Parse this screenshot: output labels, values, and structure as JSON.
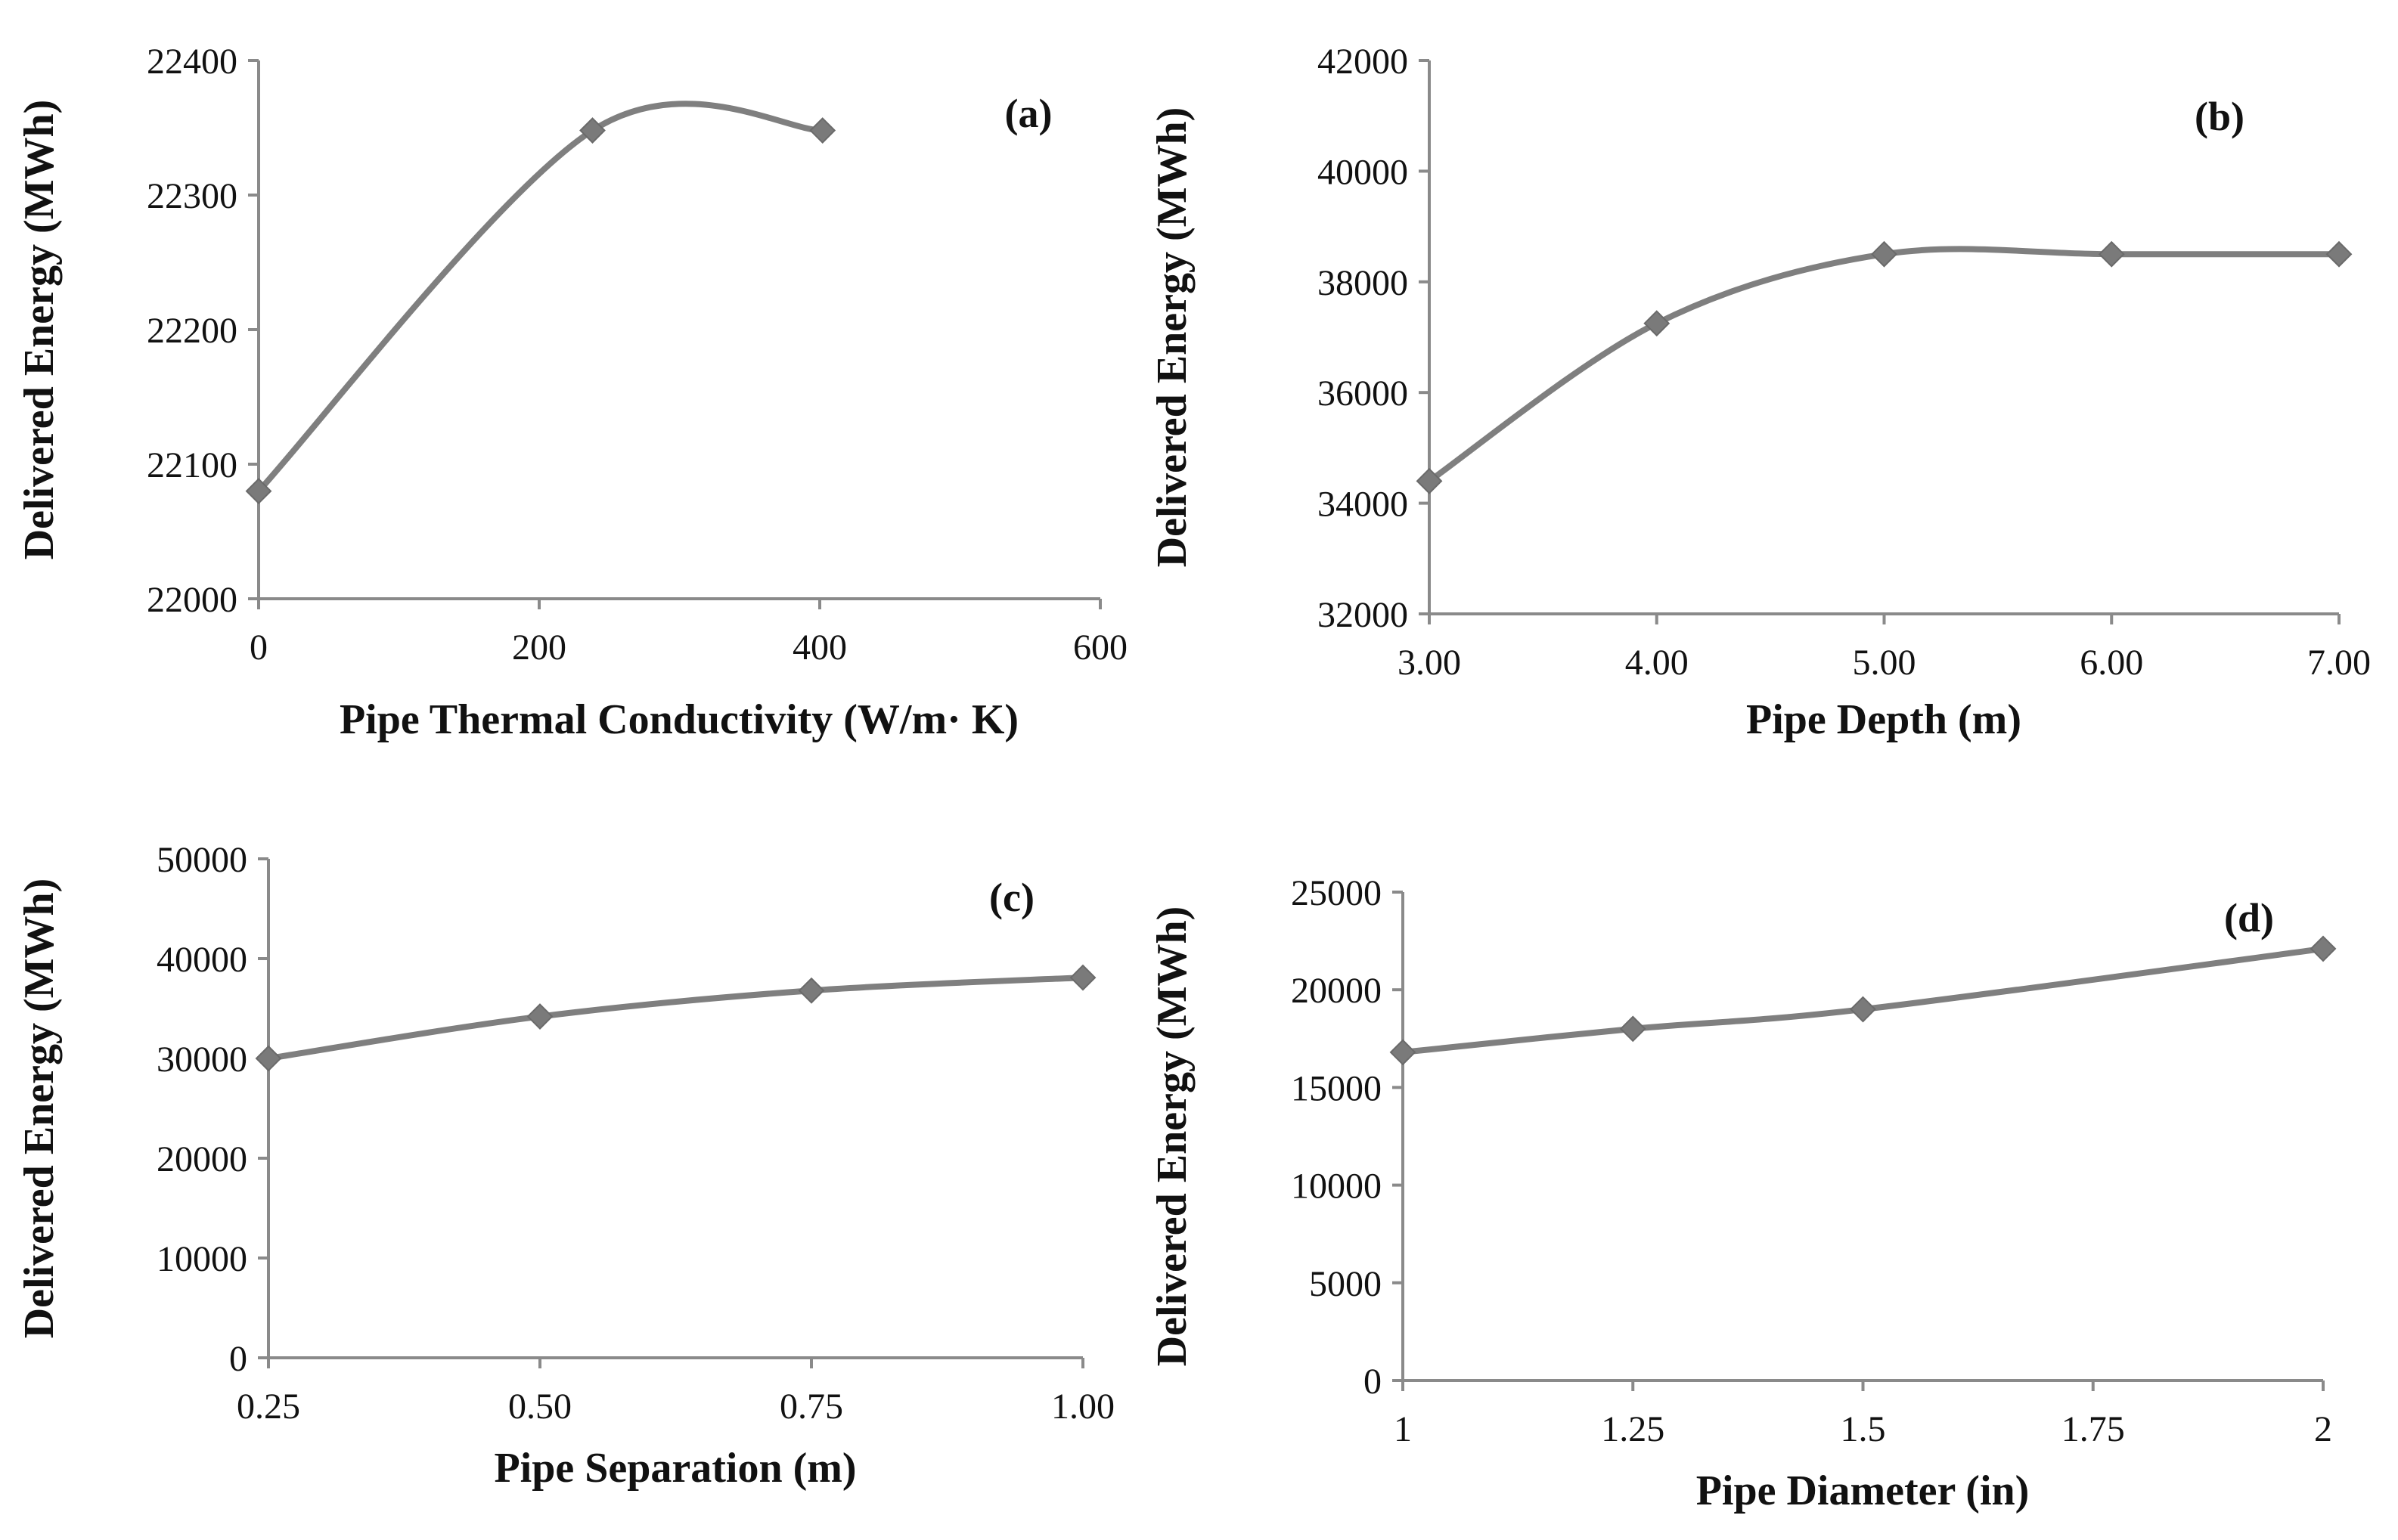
{
  "figure": {
    "colors": {
      "line": "#7f7f7f",
      "marker": "#7a7a7a",
      "axis": "#8a8a8a",
      "text": "#111111"
    }
  },
  "chart_data": [
    {
      "type": "line",
      "panel_label": "(a)",
      "x": [
        0,
        238,
        402
      ],
      "values": [
        22080,
        22348,
        22348
      ],
      "xlabel": "Pipe Thermal Conductivity (W/m· K)",
      "ylabel": "Delivered Energy (MWh)",
      "xlim": [
        0,
        600
      ],
      "ylim": [
        22000,
        22400
      ],
      "xticks": [
        0,
        200,
        400,
        600
      ],
      "xtick_labels": [
        "0",
        "200",
        "400",
        "600"
      ],
      "yticks": [
        22000,
        22100,
        22200,
        22300,
        22400
      ],
      "ytick_labels": [
        "22000",
        "22100",
        "22200",
        "22300",
        "22400"
      ],
      "smooth": true
    },
    {
      "type": "line",
      "panel_label": "(b)",
      "x": [
        3,
        4,
        5,
        6,
        7
      ],
      "values": [
        34400,
        37250,
        38500,
        38500,
        38500
      ],
      "xlabel": "Pipe Depth (m)",
      "ylabel": "Delivered Energy (MWh)",
      "xlim": [
        3,
        7
      ],
      "ylim": [
        32000,
        42000
      ],
      "xticks": [
        3,
        4,
        5,
        6,
        7
      ],
      "xtick_labels": [
        "3.00",
        "4.00",
        "5.00",
        "6.00",
        "7.00"
      ],
      "yticks": [
        32000,
        34000,
        36000,
        38000,
        40000,
        42000
      ],
      "ytick_labels": [
        "32000",
        "34000",
        "36000",
        "38000",
        "40000",
        "42000"
      ],
      "smooth": true
    },
    {
      "type": "line",
      "panel_label": "(c)",
      "x": [
        0.25,
        0.5,
        0.75,
        1.0
      ],
      "values": [
        30000,
        34200,
        36800,
        38100
      ],
      "xlabel": "Pipe Separation (m)",
      "ylabel": "Delivered Energy (MWh)",
      "xlim": [
        0.25,
        1.0
      ],
      "ylim": [
        0,
        50000
      ],
      "xticks": [
        0.25,
        0.5,
        0.75,
        1.0
      ],
      "xtick_labels": [
        "0.25",
        "0.50",
        "0.75",
        "1.00"
      ],
      "yticks": [
        0,
        10000,
        20000,
        30000,
        40000,
        50000
      ],
      "ytick_labels": [
        "0",
        "10000",
        "20000",
        "30000",
        "40000",
        "50000"
      ],
      "smooth": true
    },
    {
      "type": "line",
      "panel_label": "(d)",
      "x": [
        1,
        1.25,
        1.5,
        2
      ],
      "values": [
        16800,
        18000,
        19000,
        22100
      ],
      "xlabel": "Pipe Diameter (in)",
      "ylabel": "Delivered Energy (MWh)",
      "xlim": [
        1,
        2
      ],
      "ylim": [
        0,
        25000
      ],
      "xticks": [
        1,
        1.25,
        1.5,
        1.75,
        2
      ],
      "xtick_labels": [
        "1",
        "1.25",
        "1.5",
        "1.75",
        "2"
      ],
      "yticks": [
        0,
        5000,
        10000,
        15000,
        20000,
        25000
      ],
      "ytick_labels": [
        "0",
        "5000",
        "10000",
        "15000",
        "20000",
        "25000"
      ],
      "smooth": true
    }
  ]
}
